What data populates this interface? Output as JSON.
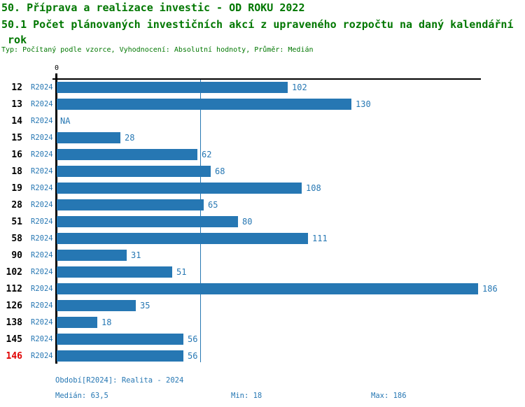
{
  "header": {
    "title_line1": "50. Příprava a realizace investic - OD ROKU 2022",
    "title_line2": "50.1 Počet plánovaných investičních akcí z upraveného rozpočtu na daný kalendářní",
    "title_line3": " rok",
    "meta_line": "Typ: Počítaný podle vzorce, Vyhodnocení: Absolutní hodnoty, Průměr: Medián"
  },
  "chart_data": {
    "type": "bar",
    "orientation": "horizontal",
    "title": "50.1 Počet plánovaných investičních akcí z upraveného rozpočtu na daný kalendářní rok",
    "categories": [
      "12",
      "13",
      "14",
      "15",
      "16",
      "18",
      "19",
      "28",
      "51",
      "58",
      "90",
      "102",
      "112",
      "126",
      "138",
      "145",
      "146"
    ],
    "period_label": "R2024",
    "values": [
      102,
      130,
      null,
      28,
      62,
      68,
      108,
      65,
      80,
      111,
      31,
      51,
      186,
      35,
      18,
      56,
      56
    ],
    "na_text": "NA",
    "axis_zero_label": "0",
    "xlim": [
      0,
      186
    ],
    "median_value": 63.5,
    "highlight_category": "146",
    "legend_position": "none",
    "grid": "median-line-only",
    "colors": {
      "bar": "#2677b3",
      "value_label": "#2677b3",
      "period_label": "#2677b3",
      "category_label": "#000000",
      "highlight_category_label": "#e00000",
      "median_line": "#2677b3",
      "header_text": "#007700"
    }
  },
  "footer": {
    "period_line": "Období[R2024]: Realita - 2024",
    "median_label": "Medián: 63,5",
    "min_label": "Min: 18",
    "max_label": "Max: 186"
  }
}
